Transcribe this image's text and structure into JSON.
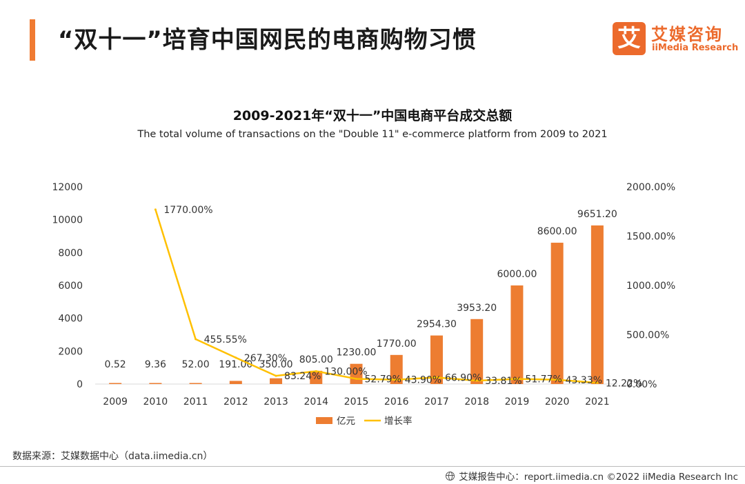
{
  "header": {
    "title": "“双十一”培育中国网民的电商购物习惯",
    "logo_mark": "艾",
    "logo_cn": "艾媒咨询",
    "logo_en": "iiMedia Research"
  },
  "chart_data": {
    "type": "bar",
    "title": "2009-2021年“双十一”中国电商平台成交总额",
    "subtitle": "The total volume of transactions on the \"Double 11\" e-commerce platform from 2009 to 2021",
    "categories": [
      "2009",
      "2010",
      "2011",
      "2012",
      "2013",
      "2014",
      "2015",
      "2016",
      "2017",
      "2018",
      "2019",
      "2020",
      "2021"
    ],
    "series": [
      {
        "name": "亿元",
        "kind": "bar",
        "axis": "left",
        "color": "#ed7d31",
        "values": [
          0.52,
          9.36,
          52.0,
          191.0,
          350.0,
          805.0,
          1230.0,
          1770.0,
          2954.3,
          3953.2,
          6000.0,
          8600.0,
          9651.2
        ],
        "labels": [
          "0.52",
          "9.36",
          "52.00",
          "191.00",
          "350.00",
          "805.00",
          "1230.00",
          "1770.00",
          "2954.30",
          "3953.20",
          "6000.00",
          "8600.00",
          "9651.20"
        ]
      },
      {
        "name": "增长率",
        "kind": "line",
        "axis": "right",
        "color": "#ffc000",
        "values": [
          null,
          1770.0,
          455.55,
          267.3,
          83.24,
          130.0,
          52.79,
          43.9,
          66.9,
          33.81,
          51.77,
          43.33,
          12.22
        ],
        "labels": [
          "",
          "1770.00%",
          "455.55%",
          "267.30%",
          "83.24%",
          "130.00%",
          "52.79%",
          "43.90%",
          "66.90%",
          "33.81%",
          "51.77%",
          "43.33%",
          "12.22%"
        ]
      }
    ],
    "y_left": {
      "min": 0,
      "max": 12000,
      "ticks": [
        "0",
        "2000",
        "4000",
        "6000",
        "8000",
        "10000",
        "12000"
      ]
    },
    "y_right": {
      "min": 0,
      "max": 2000,
      "ticks": [
        "0.00%",
        "500.00%",
        "1000.00%",
        "1500.00%",
        "2000.00%"
      ]
    },
    "grid": false,
    "legend_position": "bottom"
  },
  "source": {
    "text": "数据来源：艾媒数据中心（data.iimedia.cn）"
  },
  "footer": {
    "text": "艾媒报告中心：report.iimedia.cn  ©2022  iiMedia Research  Inc"
  }
}
